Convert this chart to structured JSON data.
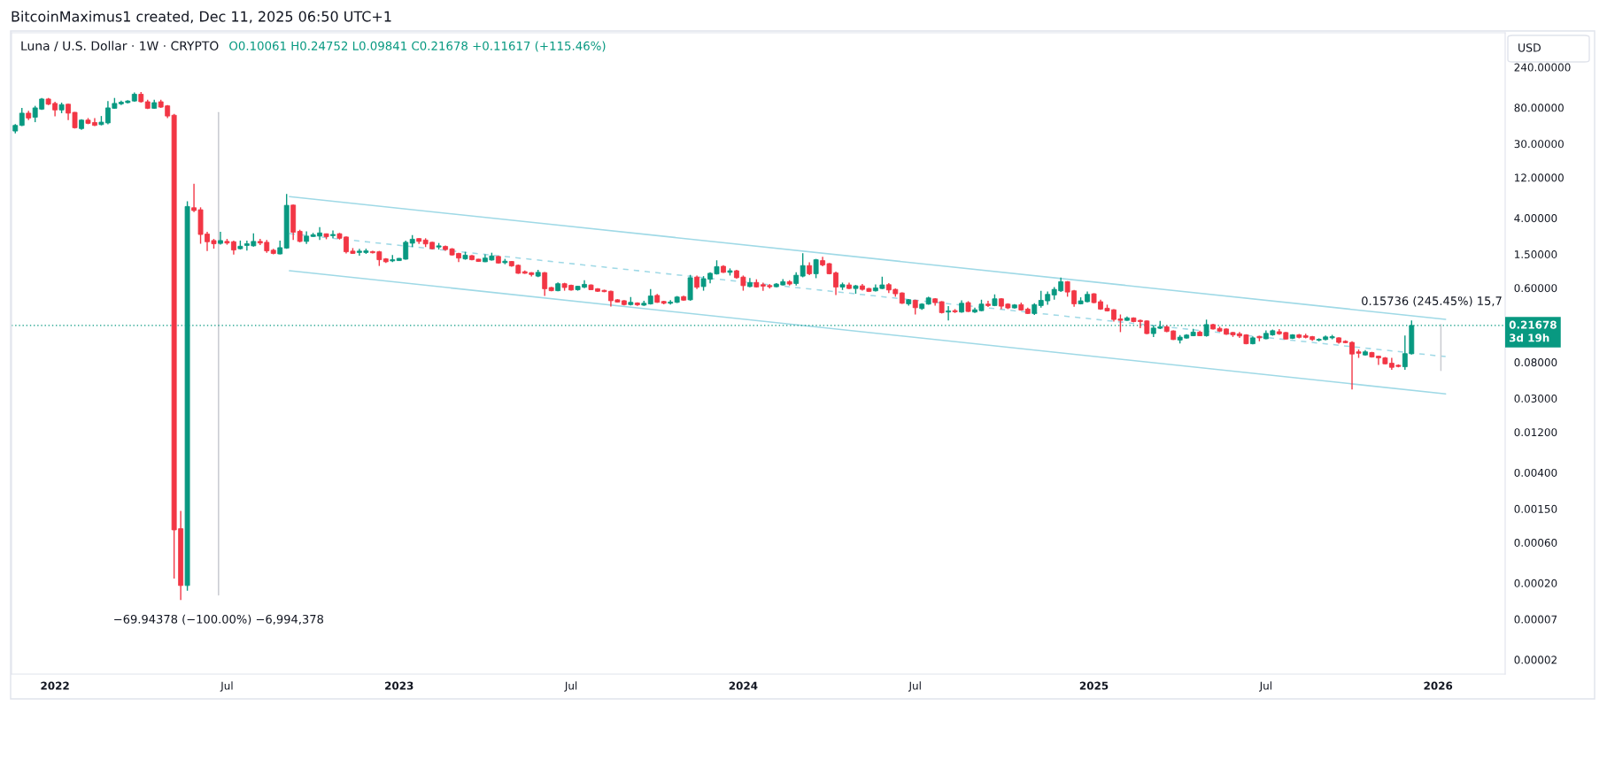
{
  "chart_data": {
    "type": "candlestick",
    "title": "Luna / U.S. Dollar · 1W · CRYPTO",
    "subtitle": "O0.10061 H0.24752 L0.09841 C0.21678 +0.11617 (+115.46%)",
    "ylabel": "USD",
    "annotations": [
      "BitcoinMaximus1 created, Dec 11, 2025 06:50 UTC+1",
      {
        "text": "−69.94378 (−100.00%) −6,994,378",
        "x": "2022-06-25",
        "y": 0.000145
      },
      {
        "text": "0.15736 (245.45%) 15,7",
        "x": "2026-01-08",
        "y": 0.2215
      }
    ],
    "x": [
      "2021-11-22",
      "2021-11-29",
      "2021-12-06",
      "2021-12-13",
      "2021-12-20",
      "2021-12-27",
      "2022-01-03",
      "2022-01-10",
      "2022-01-17",
      "2022-01-24",
      "2022-01-31",
      "2022-02-07",
      "2022-02-14",
      "2022-02-21",
      "2022-02-28",
      "2022-03-07",
      "2022-03-14",
      "2022-03-21",
      "2022-03-28",
      "2022-04-04",
      "2022-04-11",
      "2022-04-18",
      "2022-04-25",
      "2022-05-02",
      "2022-05-09",
      "2022-05-16",
      "2022-05-23",
      "2022-05-30",
      "2022-06-06",
      "2022-06-13",
      "2022-06-20",
      "2022-06-27",
      "2022-07-04",
      "2022-07-11",
      "2022-07-18",
      "2022-07-25",
      "2022-08-01",
      "2022-08-08",
      "2022-08-15",
      "2022-08-22",
      "2022-08-29",
      "2022-09-05",
      "2022-09-12",
      "2022-09-19",
      "2022-09-26",
      "2022-10-03",
      "2022-10-10",
      "2022-10-17",
      "2022-10-24",
      "2022-10-31",
      "2022-11-07",
      "2022-11-14",
      "2022-11-21",
      "2022-11-28",
      "2022-12-05",
      "2022-12-12",
      "2022-12-19",
      "2022-12-26",
      "2023-01-02",
      "2023-01-09",
      "2023-01-16",
      "2023-01-23",
      "2023-01-30",
      "2023-02-06",
      "2023-02-13",
      "2023-02-20",
      "2023-02-27",
      "2023-03-06",
      "2023-03-13",
      "2023-03-20",
      "2023-03-27",
      "2023-04-03",
      "2023-04-10",
      "2023-04-17",
      "2023-04-24",
      "2023-05-01",
      "2023-05-08",
      "2023-05-15",
      "2023-05-22",
      "2023-05-29",
      "2023-06-05",
      "2023-06-12",
      "2023-06-19",
      "2023-06-26",
      "2023-07-03",
      "2023-07-10",
      "2023-07-17",
      "2023-07-24",
      "2023-07-31",
      "2023-08-07",
      "2023-08-14",
      "2023-08-21",
      "2023-08-28",
      "2023-09-04",
      "2023-09-11",
      "2023-09-18",
      "2023-09-25",
      "2023-10-02",
      "2023-10-09",
      "2023-10-16",
      "2023-10-23",
      "2023-10-30",
      "2023-11-06",
      "2023-11-13",
      "2023-11-20",
      "2023-11-27",
      "2023-12-04",
      "2023-12-11",
      "2023-12-18",
      "2023-12-25",
      "2024-01-01",
      "2024-01-08",
      "2024-01-15",
      "2024-01-22",
      "2024-01-29",
      "2024-02-05",
      "2024-02-12",
      "2024-02-19",
      "2024-02-26",
      "2024-03-04",
      "2024-03-11",
      "2024-03-18",
      "2024-03-25",
      "2024-04-01",
      "2024-04-08",
      "2024-04-15",
      "2024-04-22",
      "2024-04-29",
      "2024-05-06",
      "2024-05-13",
      "2024-05-20",
      "2024-05-27",
      "2024-06-03",
      "2024-06-10",
      "2024-06-17",
      "2024-06-24",
      "2024-07-01",
      "2024-07-08",
      "2024-07-15",
      "2024-07-22",
      "2024-07-29",
      "2024-08-05",
      "2024-08-12",
      "2024-08-19",
      "2024-08-26",
      "2024-09-02",
      "2024-09-09",
      "2024-09-16",
      "2024-09-23",
      "2024-09-30",
      "2024-10-07",
      "2024-10-14",
      "2024-10-21",
      "2024-10-28",
      "2024-11-04",
      "2024-11-11",
      "2024-11-18",
      "2024-11-25",
      "2024-12-02",
      "2024-12-09",
      "2024-12-16",
      "2024-12-23",
      "2024-12-30",
      "2025-01-06",
      "2025-01-13",
      "2025-01-20",
      "2025-01-27",
      "2025-02-03",
      "2025-02-10",
      "2025-02-17",
      "2025-02-24",
      "2025-03-03",
      "2025-03-10",
      "2025-03-17",
      "2025-03-24",
      "2025-03-31",
      "2025-04-07",
      "2025-04-14",
      "2025-04-21",
      "2025-04-28",
      "2025-05-05",
      "2025-05-12",
      "2025-05-19",
      "2025-05-26",
      "2025-06-02",
      "2025-06-09",
      "2025-06-16",
      "2025-06-23",
      "2025-06-30",
      "2025-07-07",
      "2025-07-14",
      "2025-07-21",
      "2025-07-28",
      "2025-08-04",
      "2025-08-11",
      "2025-08-18",
      "2025-08-25",
      "2025-09-01",
      "2025-09-08",
      "2025-09-15",
      "2025-09-22",
      "2025-09-29",
      "2025-10-06",
      "2025-10-13",
      "2025-10-20",
      "2025-10-27",
      "2025-11-03",
      "2025-11-10",
      "2025-11-17",
      "2025-11-24",
      "2025-12-01",
      "2025-12-08"
    ],
    "ohlc": [
      [
        42.4,
        51.1,
        39.7,
        49.4
      ],
      [
        49.4,
        79.4,
        48.4,
        68.8
      ],
      [
        68.8,
        73.5,
        57.0,
        60.3
      ],
      [
        61.6,
        83.9,
        53.9,
        79.4
      ],
      [
        76.8,
        104,
        75.1,
        101
      ],
      [
        101,
        104,
        85.7,
        87.7
      ],
      [
        89.6,
        93.8,
        63.0,
        75.1
      ],
      [
        75.1,
        91.6,
        68.8,
        86.7
      ],
      [
        87.7,
        88.7,
        57.0,
        68.8
      ],
      [
        70.3,
        71.1,
        45.3,
        46.3
      ],
      [
        45.3,
        58.3,
        43.8,
        57.0
      ],
      [
        57.0,
        60.3,
        51.0,
        52.2
      ],
      [
        53.4,
        60.3,
        48.4,
        49.4
      ],
      [
        50.5,
        63.7,
        49.4,
        53.9
      ],
      [
        52.8,
        95.7,
        51.0,
        79.4
      ],
      [
        78.5,
        104,
        77.6,
        89.6
      ],
      [
        88.7,
        96.8,
        85.7,
        92.6
      ],
      [
        91.6,
        97.8,
        89.6,
        95.7
      ],
      [
        95.7,
        121,
        93.8,
        115
      ],
      [
        115,
        122,
        91.6,
        93.8
      ],
      [
        93.8,
        98.8,
        76.8,
        78.5
      ],
      [
        78.5,
        98.8,
        77.6,
        91.6
      ],
      [
        93.8,
        98.8,
        79.4,
        81.1
      ],
      [
        83.9,
        85.7,
        60.3,
        63.7
      ],
      [
        65.1,
        67.3,
        0.000226,
        0.000846
      ],
      [
        0.000874,
        0.00142,
        0.000126,
        0.000187
      ],
      [
        0.000187,
        6.31,
        0.000162,
        5.47
      ],
      [
        5.29,
        10.1,
        4.69,
        4.9
      ],
      [
        5.01,
        5.35,
        1.99,
        2.56
      ],
      [
        2.59,
        2.76,
        1.63,
        2.1
      ],
      [
        2.17,
        2.27,
        1.74,
        1.99
      ],
      [
        2.01,
        2.76,
        1.94,
        2.17
      ],
      [
        2.12,
        2.27,
        1.94,
        2.03
      ],
      [
        2.1,
        2.17,
        1.48,
        1.68
      ],
      [
        1.74,
        2.17,
        1.7,
        1.86
      ],
      [
        1.9,
        2.17,
        1.65,
        1.99
      ],
      [
        1.88,
        2.64,
        1.84,
        2.12
      ],
      [
        2.12,
        2.27,
        1.92,
        2.03
      ],
      [
        2.07,
        2.2,
        1.56,
        1.64
      ],
      [
        1.67,
        1.74,
        1.49,
        1.53
      ],
      [
        1.51,
        2.16,
        1.49,
        1.79
      ],
      [
        1.77,
        7.67,
        1.74,
        5.64
      ],
      [
        5.68,
        5.75,
        2.2,
        2.72
      ],
      [
        2.79,
        2.91,
        2.07,
        2.12
      ],
      [
        2.12,
        2.79,
        1.98,
        2.45
      ],
      [
        2.43,
        2.67,
        2.39,
        2.54
      ],
      [
        2.45,
        3.12,
        2.2,
        2.67
      ],
      [
        2.61,
        2.63,
        2.25,
        2.41
      ],
      [
        2.48,
        2.86,
        2.31,
        2.56
      ],
      [
        2.61,
        2.67,
        2.23,
        2.31
      ],
      [
        2.39,
        2.43,
        1.53,
        1.6
      ],
      [
        1.63,
        1.77,
        1.51,
        1.53
      ],
      [
        1.57,
        1.74,
        1.44,
        1.63
      ],
      [
        1.57,
        1.74,
        1.51,
        1.64
      ],
      [
        1.61,
        1.64,
        1.53,
        1.56
      ],
      [
        1.6,
        1.64,
        1.09,
        1.29
      ],
      [
        1.32,
        1.35,
        1.18,
        1.22
      ],
      [
        1.25,
        1.47,
        1.21,
        1.29
      ],
      [
        1.26,
        1.35,
        1.25,
        1.34
      ],
      [
        1.31,
        2.16,
        1.29,
        2.07
      ],
      [
        2.02,
        2.52,
        1.82,
        2.25
      ],
      [
        2.29,
        2.31,
        1.98,
        2.12
      ],
      [
        2.2,
        2.31,
        1.82,
        1.98
      ],
      [
        2.07,
        2.1,
        1.7,
        1.74
      ],
      [
        1.82,
        2.03,
        1.7,
        1.88
      ],
      [
        1.85,
        1.9,
        1.64,
        1.7
      ],
      [
        1.73,
        1.77,
        1.44,
        1.47
      ],
      [
        1.53,
        1.56,
        1.21,
        1.35
      ],
      [
        1.32,
        1.6,
        1.29,
        1.46
      ],
      [
        1.44,
        1.47,
        1.27,
        1.29
      ],
      [
        1.31,
        1.32,
        1.22,
        1.23
      ],
      [
        1.22,
        1.49,
        1.21,
        1.35
      ],
      [
        1.28,
        1.56,
        1.26,
        1.43
      ],
      [
        1.41,
        1.43,
        1.16,
        1.18
      ],
      [
        1.19,
        1.32,
        1.14,
        1.24
      ],
      [
        1.23,
        1.25,
        1.07,
        1.09
      ],
      [
        1.11,
        1.13,
        0.878,
        0.893
      ],
      [
        0.932,
        0.964,
        0.878,
        0.893
      ],
      [
        0.908,
        0.916,
        0.82,
        0.863
      ],
      [
        0.827,
        0.981,
        0.806,
        0.916
      ],
      [
        0.908,
        0.924,
        0.482,
        0.587
      ],
      [
        0.607,
        0.617,
        0.548,
        0.557
      ],
      [
        0.557,
        0.696,
        0.548,
        0.673
      ],
      [
        0.673,
        0.69,
        0.557,
        0.607
      ],
      [
        0.645,
        0.656,
        0.557,
        0.567
      ],
      [
        0.572,
        0.634,
        0.557,
        0.628
      ],
      [
        0.612,
        0.74,
        0.597,
        0.661
      ],
      [
        0.65,
        0.661,
        0.567,
        0.572
      ],
      [
        0.587,
        0.597,
        0.538,
        0.548
      ],
      [
        0.562,
        0.572,
        0.534,
        0.543
      ],
      [
        0.548,
        0.557,
        0.363,
        0.424
      ],
      [
        0.435,
        0.442,
        0.406,
        0.409
      ],
      [
        0.424,
        0.431,
        0.373,
        0.382
      ],
      [
        0.382,
        0.469,
        0.373,
        0.406
      ],
      [
        0.399,
        0.406,
        0.369,
        0.379
      ],
      [
        0.376,
        0.424,
        0.369,
        0.396
      ],
      [
        0.389,
        0.582,
        0.382,
        0.482
      ],
      [
        0.49,
        0.511,
        0.402,
        0.406
      ],
      [
        0.416,
        0.424,
        0.385,
        0.396
      ],
      [
        0.396,
        0.431,
        0.382,
        0.409
      ],
      [
        0.406,
        0.482,
        0.399,
        0.469
      ],
      [
        0.474,
        0.486,
        0.424,
        0.431
      ],
      [
        0.435,
        0.855,
        0.424,
        0.792
      ],
      [
        0.806,
        0.841,
        0.582,
        0.612
      ],
      [
        0.623,
        0.827,
        0.557,
        0.772
      ],
      [
        0.759,
        0.916,
        0.679,
        0.893
      ],
      [
        0.878,
        1.27,
        0.863,
        1.07
      ],
      [
        1.08,
        1.11,
        0.901,
        0.916
      ],
      [
        0.916,
        1.02,
        0.841,
        0.956
      ],
      [
        0.956,
        0.981,
        0.772,
        0.792
      ],
      [
        0.806,
        0.841,
        0.557,
        0.639
      ],
      [
        0.623,
        0.785,
        0.612,
        0.696
      ],
      [
        0.696,
        0.759,
        0.607,
        0.617
      ],
      [
        0.656,
        0.694,
        0.555,
        0.63
      ],
      [
        0.64,
        0.667,
        0.591,
        0.62
      ],
      [
        0.62,
        0.683,
        0.611,
        0.667
      ],
      [
        0.651,
        0.764,
        0.64,
        0.711
      ],
      [
        0.711,
        0.74,
        0.64,
        0.667
      ],
      [
        0.677,
        0.918,
        0.64,
        0.847
      ],
      [
        0.827,
        1.54,
        0.801,
        1.1
      ],
      [
        1.1,
        1.2,
        0.847,
        0.882
      ],
      [
        0.882,
        1.32,
        0.782,
        1.29
      ],
      [
        1.26,
        1.4,
        1.08,
        1.12
      ],
      [
        1.16,
        1.18,
        0.868,
        0.882
      ],
      [
        0.903,
        0.933,
        0.496,
        0.615
      ],
      [
        0.615,
        0.694,
        0.568,
        0.656
      ],
      [
        0.651,
        0.694,
        0.582,
        0.591
      ],
      [
        0.591,
        0.651,
        0.512,
        0.635
      ],
      [
        0.635,
        0.667,
        0.559,
        0.577
      ],
      [
        0.591,
        0.601,
        0.537,
        0.546
      ],
      [
        0.555,
        0.661,
        0.546,
        0.601
      ],
      [
        0.591,
        0.814,
        0.582,
        0.651
      ],
      [
        0.656,
        0.683,
        0.524,
        0.568
      ],
      [
        0.577,
        0.591,
        0.473,
        0.512
      ],
      [
        0.524,
        0.533,
        0.39,
        0.396
      ],
      [
        0.39,
        0.443,
        0.372,
        0.436
      ],
      [
        0.429,
        0.436,
        0.292,
        0.351
      ],
      [
        0.343,
        0.396,
        0.332,
        0.387
      ],
      [
        0.387,
        0.473,
        0.381,
        0.458
      ],
      [
        0.447,
        0.454,
        0.372,
        0.403
      ],
      [
        0.413,
        0.419,
        0.3,
        0.307
      ],
      [
        0.312,
        0.366,
        0.249,
        0.322
      ],
      [
        0.324,
        0.338,
        0.304,
        0.314
      ],
      [
        0.312,
        0.429,
        0.307,
        0.396
      ],
      [
        0.403,
        0.419,
        0.312,
        0.317
      ],
      [
        0.312,
        0.351,
        0.304,
        0.332
      ],
      [
        0.324,
        0.436,
        0.319,
        0.387
      ],
      [
        0.387,
        0.423,
        0.357,
        0.372
      ],
      [
        0.372,
        0.504,
        0.366,
        0.447
      ],
      [
        0.447,
        0.454,
        0.338,
        0.366
      ],
      [
        0.387,
        0.396,
        0.338,
        0.349
      ],
      [
        0.349,
        0.387,
        0.343,
        0.378
      ],
      [
        0.381,
        0.403,
        0.324,
        0.33
      ],
      [
        0.338,
        0.351,
        0.295,
        0.3
      ],
      [
        0.3,
        0.396,
        0.288,
        0.381
      ],
      [
        0.372,
        0.555,
        0.351,
        0.429
      ],
      [
        0.423,
        0.546,
        0.381,
        0.504
      ],
      [
        0.496,
        0.615,
        0.436,
        0.577
      ],
      [
        0.555,
        0.795,
        0.537,
        0.711
      ],
      [
        0.711,
        0.722,
        0.473,
        0.537
      ],
      [
        0.555,
        0.568,
        0.36,
        0.39
      ],
      [
        0.39,
        0.465,
        0.384,
        0.423
      ],
      [
        0.413,
        0.546,
        0.406,
        0.504
      ],
      [
        0.512,
        0.52,
        0.396,
        0.403
      ],
      [
        0.413,
        0.436,
        0.332,
        0.338
      ],
      [
        0.346,
        0.381,
        0.317,
        0.322
      ],
      [
        0.332,
        0.338,
        0.241,
        0.255
      ],
      [
        0.259,
        0.292,
        0.181,
        0.249
      ],
      [
        0.249,
        0.276,
        0.245,
        0.266
      ],
      [
        0.266,
        0.27,
        0.236,
        0.241
      ],
      [
        0.249,
        0.255,
        0.201,
        0.241
      ],
      [
        0.245,
        0.249,
        0.171,
        0.174
      ],
      [
        0.174,
        0.218,
        0.158,
        0.202
      ],
      [
        0.201,
        0.245,
        0.196,
        0.209
      ],
      [
        0.209,
        0.218,
        0.181,
        0.184
      ],
      [
        0.187,
        0.19,
        0.146,
        0.148
      ],
      [
        0.146,
        0.167,
        0.133,
        0.158
      ],
      [
        0.154,
        0.171,
        0.152,
        0.167
      ],
      [
        0.164,
        0.198,
        0.162,
        0.181
      ],
      [
        0.181,
        0.188,
        0.162,
        0.164
      ],
      [
        0.164,
        0.254,
        0.16,
        0.222
      ],
      [
        0.222,
        0.227,
        0.194,
        0.197
      ],
      [
        0.2,
        0.21,
        0.182,
        0.186
      ],
      [
        0.197,
        0.2,
        0.168,
        0.171
      ],
      [
        0.179,
        0.182,
        0.159,
        0.168
      ],
      [
        0.173,
        0.182,
        0.155,
        0.163
      ],
      [
        0.168,
        0.171,
        0.13,
        0.132
      ],
      [
        0.132,
        0.161,
        0.13,
        0.155
      ],
      [
        0.161,
        0.164,
        0.141,
        0.155
      ],
      [
        0.151,
        0.189,
        0.149,
        0.175
      ],
      [
        0.168,
        0.194,
        0.164,
        0.188
      ],
      [
        0.183,
        0.197,
        0.168,
        0.173
      ],
      [
        0.179,
        0.182,
        0.148,
        0.15
      ],
      [
        0.153,
        0.171,
        0.15,
        0.168
      ],
      [
        0.168,
        0.172,
        0.153,
        0.157
      ],
      [
        0.164,
        0.173,
        0.153,
        0.157
      ],
      [
        0.16,
        0.163,
        0.143,
        0.148
      ],
      [
        0.145,
        0.153,
        0.141,
        0.149
      ],
      [
        0.148,
        0.165,
        0.145,
        0.159
      ],
      [
        0.155,
        0.168,
        0.149,
        0.16
      ],
      [
        0.155,
        0.157,
        0.132,
        0.137
      ],
      [
        0.141,
        0.145,
        0.134,
        0.136
      ],
      [
        0.137,
        0.141,
        0.0382,
        0.0998
      ],
      [
        0.106,
        0.113,
        0.0899,
        0.102
      ],
      [
        0.0974,
        0.111,
        0.0959,
        0.106
      ],
      [
        0.104,
        0.106,
        0.0907,
        0.0921
      ],
      [
        0.0943,
        0.0959,
        0.0742,
        0.0899
      ],
      [
        0.0899,
        0.0921,
        0.0754,
        0.0766
      ],
      [
        0.0778,
        0.0899,
        0.0653,
        0.0696
      ],
      [
        0.0736,
        0.0754,
        0.0696,
        0.0713
      ],
      [
        0.0707,
        0.165,
        0.0653,
        0.101
      ],
      [
        0.10061,
        0.24752,
        0.09841,
        0.21678
      ]
    ],
    "colors": [
      "#089981",
      "#089981",
      "#f23645",
      "#089981",
      "#089981",
      "#f23645",
      "#f23645",
      "#089981",
      "#f23645",
      "#f23645",
      "#089981",
      "#f23645",
      "#f23645",
      "#089981",
      "#089981",
      "#089981",
      "#089981",
      "#089981",
      "#089981",
      "#f23645",
      "#f23645",
      "#089981",
      "#f23645",
      "#f23645",
      "#f23645",
      "#f23645",
      "#089981",
      "#f23645",
      "#f23645",
      "#f23645",
      "#f23645",
      "#089981",
      "#f23645",
      "#f23645",
      "#089981",
      "#089981",
      "#089981",
      "#f23645",
      "#f23645",
      "#f23645",
      "#089981",
      "#089981",
      "#f23645",
      "#f23645",
      "#089981",
      "#089981",
      "#089981",
      "#f23645",
      "#089981",
      "#f23645",
      "#f23645",
      "#f23645",
      "#089981",
      "#089981",
      "#f23645",
      "#f23645",
      "#f23645",
      "#089981",
      "#089981",
      "#089981",
      "#089981",
      "#f23645",
      "#f23645",
      "#f23645",
      "#089981",
      "#f23645",
      "#f23645",
      "#f23645",
      "#089981",
      "#f23645",
      "#f23645",
      "#089981",
      "#089981",
      "#f23645",
      "#089981",
      "#f23645",
      "#f23645",
      "#f23645",
      "#f23645",
      "#089981",
      "#f23645",
      "#f23645",
      "#089981",
      "#f23645",
      "#f23645",
      "#089981",
      "#089981",
      "#f23645",
      "#f23645",
      "#f23645",
      "#f23645",
      "#f23645",
      "#f23645",
      "#089981",
      "#f23645",
      "#089981",
      "#089981",
      "#f23645",
      "#f23645",
      "#089981",
      "#089981",
      "#f23645",
      "#089981",
      "#f23645",
      "#089981",
      "#089981",
      "#089981",
      "#f23645",
      "#089981",
      "#f23645",
      "#f23645",
      "#089981",
      "#f23645",
      "#f23645",
      "#f23645",
      "#089981",
      "#089981",
      "#f23645",
      "#089981",
      "#089981",
      "#f23645",
      "#089981",
      "#f23645",
      "#f23645",
      "#f23645",
      "#089981",
      "#f23645",
      "#089981",
      "#f23645",
      "#f23645",
      "#089981",
      "#089981",
      "#f23645",
      "#f23645",
      "#f23645",
      "#089981",
      "#f23645",
      "#089981",
      "#089981",
      "#f23645",
      "#f23645",
      "#089981",
      "#f23645",
      "#089981",
      "#f23645",
      "#089981",
      "#089981",
      "#f23645",
      "#089981",
      "#f23645",
      "#f23645",
      "#089981",
      "#f23645",
      "#f23645",
      "#089981",
      "#089981",
      "#089981",
      "#089981",
      "#089981",
      "#f23645",
      "#f23645",
      "#089981",
      "#089981",
      "#f23645",
      "#f23645",
      "#f23645",
      "#f23645",
      "#f23645",
      "#089981",
      "#f23645",
      "#f23645",
      "#f23645",
      "#089981",
      "#089981",
      "#f23645",
      "#f23645",
      "#089981",
      "#089981",
      "#089981",
      "#f23645",
      "#089981",
      "#f23645",
      "#f23645",
      "#f23645",
      "#f23645",
      "#f23645",
      "#f23645",
      "#089981",
      "#f23645",
      "#089981",
      "#089981",
      "#f23645",
      "#f23645",
      "#089981",
      "#f23645",
      "#f23645",
      "#f23645",
      "#089981",
      "#089981",
      "#089981",
      "#f23645",
      "#f23645",
      "#f23645",
      "#f23645",
      "#089981",
      "#f23645",
      "#f23645",
      "#f23645",
      "#f23645",
      "#f23645",
      "#089981",
      "#089981"
    ],
    "series": [
      {
        "type": "line",
        "x": [
          "2022-09-08",
          "2026-01-13"
        ],
        "values": [
          7.16,
          0.256
        ],
        "color": "#9fd9e6"
      },
      {
        "type": "line",
        "x": [
          "2022-09-08",
          "2026-01-13"
        ],
        "values": [
          2.62,
          0.0931
        ],
        "color": "#9fd9e6",
        "line_style": "dashed"
      },
      {
        "type": "line",
        "x": [
          "2022-09-08",
          "2026-01-13"
        ],
        "values": [
          0.956,
          0.0339
        ],
        "color": "#9fd9e6"
      },
      {
        "type": "line",
        "x": [
          "2022-06-25",
          "2022-06-25"
        ],
        "values": [
          69.94,
          0.000145
        ],
        "color": "#c9cbd1"
      },
      {
        "type": "line",
        "x": [
          "2026-01-08",
          "2026-01-08"
        ],
        "values": [
          0.0641,
          0.2215
        ],
        "color": "#c9cbd1"
      }
    ],
    "ref_lines": [
      {
        "axis": "y",
        "value": 0.21678,
        "label": "0.21678\n3d 19h",
        "color": "#089981",
        "line_style": "dotted"
      }
    ],
    "log": true,
    "xlim": [
      "2021-11-18",
      "2026-03-17"
    ],
    "xticks": [
      {
        "value": "2022-01-03",
        "label": "2022"
      },
      {
        "value": "2022-07-04",
        "label": "Jul"
      },
      {
        "value": "2023-01-02",
        "label": "2023"
      },
      {
        "value": "2023-07-03",
        "label": "Jul"
      },
      {
        "value": "2024-01-01",
        "label": "2024"
      },
      {
        "value": "2024-07-01",
        "label": "Jul"
      },
      {
        "value": "2025-01-06",
        "label": "2025"
      },
      {
        "value": "2025-07-07",
        "label": "Jul"
      },
      {
        "value": "2026-01-05",
        "label": "2026"
      }
    ],
    "ylim": [
      1.69e-05,
      610
    ],
    "yticks": [
      {
        "value": 240,
        "label": "240.00000"
      },
      {
        "value": 80,
        "label": "80.00000"
      },
      {
        "value": 30,
        "label": "30.00000"
      },
      {
        "value": 12,
        "label": "12.00000"
      },
      {
        "value": 4,
        "label": "4.00000"
      },
      {
        "value": 1.5,
        "label": "1.50000"
      },
      {
        "value": 0.6,
        "label": "0.60000"
      },
      {
        "value": 0.08,
        "label": "0.08000"
      },
      {
        "value": 0.03,
        "label": "0.03000"
      },
      {
        "value": 0.012,
        "label": "0.01200"
      },
      {
        "value": 0.004,
        "label": "0.00400"
      },
      {
        "value": 0.0015,
        "label": "0.00150"
      },
      {
        "value": 0.0006,
        "label": "0.00060"
      },
      {
        "value": 0.0002,
        "label": "0.00020"
      },
      {
        "value": 7.5e-05,
        "label": "0.00007"
      },
      {
        "value": 2.5e-05,
        "label": "0.00002"
      }
    ]
  }
}
